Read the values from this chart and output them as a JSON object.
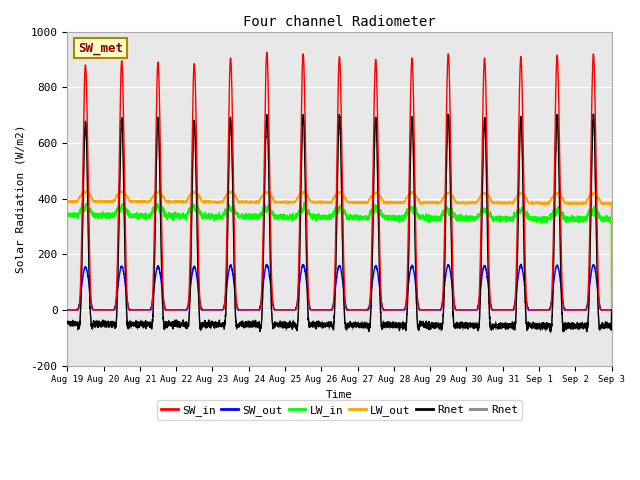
{
  "title": "Four channel Radiometer",
  "ylabel": "Solar Radiation (W/m2)",
  "xlabel": "Time",
  "ylim": [
    -200,
    1000
  ],
  "xlim": [
    0,
    15
  ],
  "tick_labels": [
    "Aug 19",
    "Aug 20",
    "Aug 21",
    "Aug 22",
    "Aug 23",
    "Aug 24",
    "Aug 25",
    "Aug 26",
    "Aug 27",
    "Aug 28",
    "Aug 29",
    "Aug 30",
    "Aug 31",
    "Sep 1",
    "Sep 2",
    "Sep 3"
  ],
  "legend_entries": [
    "SW_in",
    "SW_out",
    "LW_in",
    "LW_out",
    "Rnet",
    "Rnet"
  ],
  "legend_colors": [
    "red",
    "blue",
    "lime",
    "#FFA500",
    "black",
    "#888888"
  ],
  "station_label": "SW_met",
  "background_color": "#e8e8e8",
  "n_days": 15,
  "yticks": [
    -200,
    0,
    200,
    400,
    600,
    800,
    1000
  ],
  "sw_in_peaks": [
    880,
    895,
    890,
    885,
    905,
    925,
    920,
    910,
    900,
    905,
    920,
    905,
    910,
    915,
    920
  ],
  "lw_in_base": 330,
  "lw_out_base": 390,
  "rnet_night": -75
}
